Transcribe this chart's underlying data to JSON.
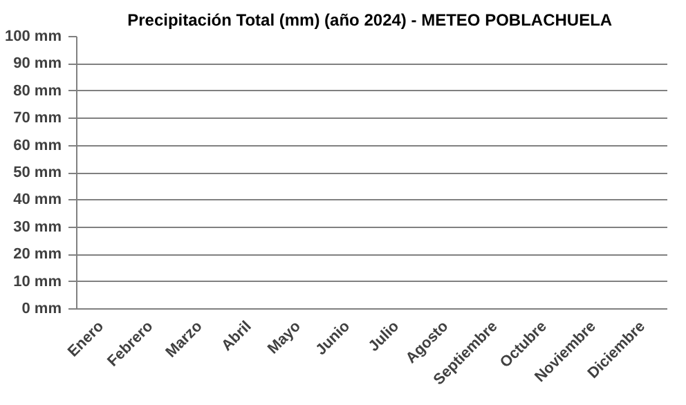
{
  "chart_data": {
    "type": "bar",
    "title": "Precipitación Total (mm) (año 2024) - METEO  POBLACHUELA",
    "categories": [
      "Enero",
      "Febrero",
      "Marzo",
      "Abril",
      "Mayo",
      "Junio",
      "Julio",
      "Agosto",
      "Septiembre",
      "Octubre",
      "Noviembre",
      "Diciembre"
    ],
    "values": [
      null,
      null,
      null,
      null,
      null,
      null,
      null,
      null,
      null,
      null,
      null,
      null
    ],
    "ylim": [
      0,
      100
    ],
    "yticks": [
      {
        "value": 0,
        "label": "0 mm"
      },
      {
        "value": 10,
        "label": "10 mm"
      },
      {
        "value": 20,
        "label": "20 mm"
      },
      {
        "value": 30,
        "label": "30 mm"
      },
      {
        "value": 40,
        "label": "40 mm"
      },
      {
        "value": 50,
        "label": "50 mm"
      },
      {
        "value": 60,
        "label": "60 mm"
      },
      {
        "value": 70,
        "label": "70 mm"
      },
      {
        "value": 80,
        "label": "80 mm"
      },
      {
        "value": 90,
        "label": "90 mm"
      },
      {
        "value": 100,
        "label": "100 mm"
      }
    ],
    "grid": "y"
  }
}
